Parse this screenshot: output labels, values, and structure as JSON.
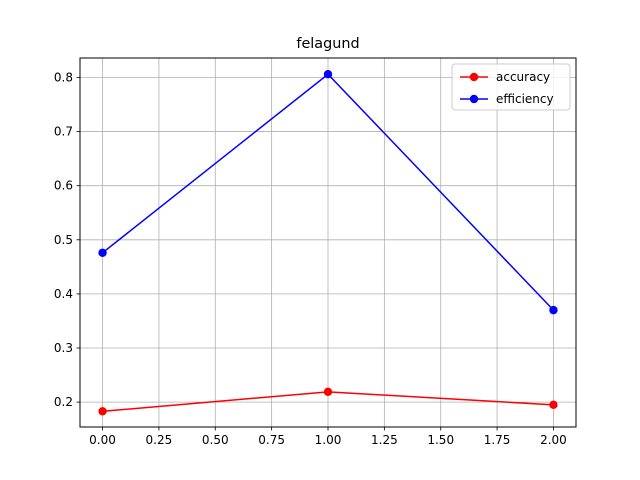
{
  "chart_data": {
    "type": "line",
    "title": "felagund",
    "xlabel": "",
    "ylabel": "",
    "xlim": [
      -0.1,
      2.1
    ],
    "ylim": [
      0.154,
      0.836
    ],
    "x_ticks": [
      0.0,
      0.25,
      0.5,
      0.75,
      1.0,
      1.25,
      1.5,
      1.75,
      2.0
    ],
    "x_tick_labels": [
      "0.00",
      "0.25",
      "0.50",
      "0.75",
      "1.00",
      "1.25",
      "1.50",
      "1.75",
      "2.00"
    ],
    "y_ticks": [
      0.2,
      0.3,
      0.4,
      0.5,
      0.6,
      0.7,
      0.8
    ],
    "y_tick_labels": [
      "0.2",
      "0.3",
      "0.4",
      "0.5",
      "0.6",
      "0.7",
      "0.8"
    ],
    "grid": true,
    "legend_position": "top-right",
    "x": [
      0,
      1,
      2
    ],
    "series": [
      {
        "name": "accuracy",
        "color": "#ff0000",
        "values": [
          0.183,
          0.219,
          0.195
        ]
      },
      {
        "name": "efficiency",
        "color": "#0000ff",
        "values": [
          0.476,
          0.806,
          0.37
        ]
      }
    ]
  }
}
